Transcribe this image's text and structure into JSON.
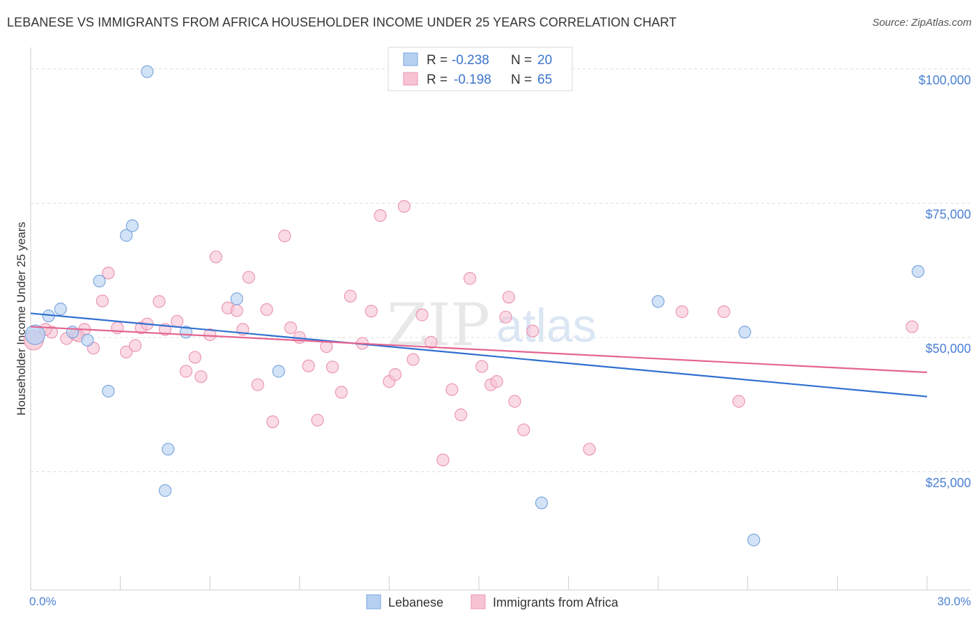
{
  "header": {
    "title": "LEBANESE VS IMMIGRANTS FROM AFRICA HOUSEHOLDER INCOME UNDER 25 YEARS CORRELATION CHART",
    "source": "Source: ZipAtlas.com"
  },
  "watermark": {
    "zip": "ZIP",
    "atlas": "atlas"
  },
  "colors": {
    "lebanese_fill": "#b6d0f2",
    "lebanese_stroke": "#7aa6dd",
    "lebanese_line": "#2f6fcf",
    "africa_fill": "#f7c3d3",
    "africa_stroke": "#eb96b2",
    "africa_line": "#e4638f",
    "axis_label": "#4a7fd4",
    "grid": "#dddddd"
  },
  "legend": {
    "rows": [
      {
        "r_label": "R =",
        "r_value": "-0.238",
        "n_label": "N =",
        "n_value": "20"
      },
      {
        "r_label": "R =",
        "r_value": "-0.198",
        "n_label": "N =",
        "n_value": "65"
      }
    ]
  },
  "chart_data": {
    "type": "scatter",
    "title": "LEBANESE VS IMMIGRANTS FROM AFRICA HOUSEHOLDER INCOME UNDER 25 YEARS CORRELATION CHART",
    "xlabel": "",
    "ylabel": "Householder Income Under 25 years",
    "xlim": [
      0,
      30
    ],
    "ylim": [
      3000,
      104000
    ],
    "x_tick_labels": [
      "0.0%",
      "30.0%"
    ],
    "y_ticks": [
      {
        "value": 25000,
        "label": "$25,000"
      },
      {
        "value": 50000,
        "label": "$50,000"
      },
      {
        "value": 75000,
        "label": "$75,000"
      },
      {
        "value": 100000,
        "label": "$100,000"
      }
    ],
    "series": [
      {
        "name": "Lebanese",
        "r": -0.238,
        "n": 20,
        "trend": {
          "x": [
            0,
            30
          ],
          "y": [
            54500,
            39000
          ]
        },
        "points": [
          {
            "x": 0.15,
            "y": 50500,
            "big": true
          },
          {
            "x": 0.6,
            "y": 54000
          },
          {
            "x": 1.0,
            "y": 55300
          },
          {
            "x": 1.4,
            "y": 51000
          },
          {
            "x": 1.9,
            "y": 49500
          },
          {
            "x": 2.3,
            "y": 60500
          },
          {
            "x": 2.6,
            "y": 40000
          },
          {
            "x": 3.2,
            "y": 69000
          },
          {
            "x": 3.4,
            "y": 70800
          },
          {
            "x": 3.9,
            "y": 99500
          },
          {
            "x": 4.5,
            "y": 21500
          },
          {
            "x": 4.6,
            "y": 29200
          },
          {
            "x": 5.2,
            "y": 51000
          },
          {
            "x": 6.9,
            "y": 57200
          },
          {
            "x": 8.3,
            "y": 43700
          },
          {
            "x": 17.1,
            "y": 19200
          },
          {
            "x": 21.0,
            "y": 56700
          },
          {
            "x": 23.9,
            "y": 51000
          },
          {
            "x": 24.2,
            "y": 12300
          },
          {
            "x": 29.7,
            "y": 62300
          }
        ]
      },
      {
        "name": "Immigrants from Africa",
        "r": -0.198,
        "n": 65,
        "trend": {
          "x": [
            0,
            30
          ],
          "y": [
            52000,
            43500
          ]
        },
        "points": [
          {
            "x": 0.1,
            "y": 49500,
            "big": true
          },
          {
            "x": 0.7,
            "y": 51000
          },
          {
            "x": 1.2,
            "y": 49800
          },
          {
            "x": 1.5,
            "y": 50500
          },
          {
            "x": 1.8,
            "y": 51500
          },
          {
            "x": 2.1,
            "y": 48000
          },
          {
            "x": 2.4,
            "y": 56800
          },
          {
            "x": 2.6,
            "y": 62000
          },
          {
            "x": 2.9,
            "y": 51800
          },
          {
            "x": 3.2,
            "y": 47300
          },
          {
            "x": 3.5,
            "y": 48500
          },
          {
            "x": 3.7,
            "y": 51800
          },
          {
            "x": 3.9,
            "y": 52500
          },
          {
            "x": 4.3,
            "y": 56700
          },
          {
            "x": 4.5,
            "y": 51500
          },
          {
            "x": 4.9,
            "y": 53000
          },
          {
            "x": 5.2,
            "y": 43700
          },
          {
            "x": 5.5,
            "y": 46300
          },
          {
            "x": 5.7,
            "y": 42700
          },
          {
            "x": 6.0,
            "y": 50500
          },
          {
            "x": 6.2,
            "y": 65000
          },
          {
            "x": 6.6,
            "y": 55500
          },
          {
            "x": 6.9,
            "y": 55000
          },
          {
            "x": 7.1,
            "y": 51500
          },
          {
            "x": 7.3,
            "y": 61200
          },
          {
            "x": 7.6,
            "y": 41200
          },
          {
            "x": 7.9,
            "y": 55200
          },
          {
            "x": 8.1,
            "y": 34300
          },
          {
            "x": 8.5,
            "y": 68900
          },
          {
            "x": 8.7,
            "y": 51800
          },
          {
            "x": 9.0,
            "y": 50000
          },
          {
            "x": 9.3,
            "y": 44700
          },
          {
            "x": 9.6,
            "y": 34600
          },
          {
            "x": 9.9,
            "y": 48300
          },
          {
            "x": 10.1,
            "y": 44500
          },
          {
            "x": 10.4,
            "y": 39800
          },
          {
            "x": 10.7,
            "y": 57700
          },
          {
            "x": 11.1,
            "y": 48900
          },
          {
            "x": 11.4,
            "y": 54900
          },
          {
            "x": 11.7,
            "y": 72700
          },
          {
            "x": 12.0,
            "y": 41800
          },
          {
            "x": 12.2,
            "y": 43100
          },
          {
            "x": 12.5,
            "y": 74400
          },
          {
            "x": 12.8,
            "y": 45900
          },
          {
            "x": 13.1,
            "y": 54200
          },
          {
            "x": 13.4,
            "y": 49100
          },
          {
            "x": 13.8,
            "y": 27200
          },
          {
            "x": 14.1,
            "y": 40300
          },
          {
            "x": 14.4,
            "y": 35600
          },
          {
            "x": 14.7,
            "y": 61000
          },
          {
            "x": 15.1,
            "y": 44600
          },
          {
            "x": 15.4,
            "y": 41200
          },
          {
            "x": 15.6,
            "y": 41800
          },
          {
            "x": 15.9,
            "y": 53800
          },
          {
            "x": 16.2,
            "y": 38100
          },
          {
            "x": 16.5,
            "y": 32800
          },
          {
            "x": 16.8,
            "y": 51200
          },
          {
            "x": 16.0,
            "y": 57500
          },
          {
            "x": 18.7,
            "y": 29200
          },
          {
            "x": 21.8,
            "y": 54800
          },
          {
            "x": 23.2,
            "y": 54800
          },
          {
            "x": 23.7,
            "y": 38100
          },
          {
            "x": 29.5,
            "y": 52000
          },
          {
            "x": 0.5,
            "y": 51500
          },
          {
            "x": 1.6,
            "y": 50300
          }
        ]
      }
    ],
    "legend_labels": [
      "Lebanese",
      "Immigrants from Africa"
    ]
  }
}
